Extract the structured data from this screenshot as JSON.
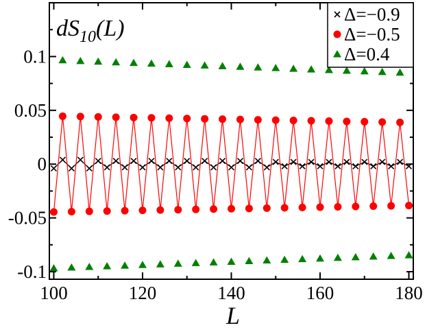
{
  "chart_data": {
    "type": "line",
    "annotation": {
      "prefix": "dS",
      "subscript": "10",
      "suffix": "(L)"
    },
    "xlabel": "L",
    "ylabel": "",
    "xlim": [
      99,
      181
    ],
    "ylim": [
      -0.107,
      0.15
    ],
    "x_ticks": [
      100,
      120,
      140,
      160,
      180
    ],
    "x_tick_labels": [
      "100",
      "120",
      "140",
      "160",
      "180"
    ],
    "y_ticks": [
      -0.1,
      -0.05,
      0,
      0.05,
      0.1
    ],
    "y_tick_labels": [
      "-0.1",
      "-0.05",
      "0",
      "0.05",
      "0.1"
    ],
    "legend_position": "top-right",
    "series": [
      {
        "name": "Δ=−0.9",
        "marker": "x",
        "color": "#000000",
        "line": true,
        "x": [
          100,
          102,
          104,
          106,
          108,
          110,
          112,
          114,
          116,
          118,
          120,
          122,
          124,
          126,
          128,
          130,
          132,
          134,
          136,
          138,
          140,
          142,
          144,
          146,
          148,
          150,
          152,
          154,
          156,
          158,
          160,
          162,
          164,
          166,
          168,
          170,
          172,
          174,
          176,
          178,
          180
        ],
        "y": [
          -0.004,
          0.004,
          -0.004,
          0.004,
          -0.004,
          0.003,
          -0.003,
          0.003,
          -0.003,
          0.003,
          -0.003,
          0.003,
          -0.003,
          0.003,
          -0.003,
          0.003,
          -0.003,
          0.003,
          -0.003,
          0.003,
          -0.003,
          0.003,
          -0.003,
          0.003,
          -0.003,
          0.002,
          -0.002,
          0.002,
          -0.002,
          0.002,
          -0.002,
          0.002,
          -0.002,
          0.002,
          -0.002,
          0.002,
          -0.002,
          0.002,
          -0.002,
          0.002,
          -0.002
        ]
      },
      {
        "name": "Δ=−0.5",
        "marker": "circle",
        "color": "#ff0000",
        "line": true,
        "x": [
          100,
          102,
          104,
          106,
          108,
          110,
          112,
          114,
          116,
          118,
          120,
          122,
          124,
          126,
          128,
          130,
          132,
          134,
          136,
          138,
          140,
          142,
          144,
          146,
          148,
          150,
          152,
          154,
          156,
          158,
          160,
          162,
          164,
          166,
          168,
          170,
          172,
          174,
          176,
          178,
          180
        ],
        "y": [
          -0.0445,
          0.0445,
          -0.0442,
          0.0442,
          -0.0439,
          0.0439,
          -0.0436,
          0.0436,
          -0.0433,
          0.0433,
          -0.043,
          0.043,
          -0.0427,
          0.0427,
          -0.0424,
          0.0424,
          -0.0421,
          0.0421,
          -0.0418,
          0.0418,
          -0.0415,
          0.0415,
          -0.0412,
          0.0412,
          -0.0409,
          0.0409,
          -0.0406,
          0.0406,
          -0.0403,
          0.0403,
          -0.04,
          0.04,
          -0.0397,
          0.0397,
          -0.0394,
          0.0394,
          -0.0391,
          0.0391,
          -0.0388,
          0.0388,
          -0.0385
        ]
      },
      {
        "name": "Δ=0.4",
        "marker": "triangle",
        "color": "#008000",
        "line": false,
        "x": [
          100,
          102,
          104,
          106,
          108,
          110,
          112,
          114,
          116,
          118,
          120,
          122,
          124,
          126,
          128,
          130,
          132,
          134,
          136,
          138,
          140,
          142,
          144,
          146,
          148,
          150,
          152,
          154,
          156,
          158,
          160,
          162,
          164,
          166,
          168,
          170,
          172,
          174,
          176,
          178,
          180
        ],
        "y": [
          -0.0968,
          0.0966,
          -0.0961,
          0.0959,
          -0.0955,
          0.0953,
          -0.0949,
          0.0947,
          -0.0943,
          0.0941,
          -0.0937,
          0.0935,
          -0.0931,
          0.0929,
          -0.0925,
          0.0923,
          -0.0919,
          0.0917,
          -0.0913,
          0.0911,
          -0.0907,
          0.0905,
          -0.0901,
          0.0899,
          -0.0895,
          0.0893,
          -0.0889,
          0.0887,
          -0.0883,
          0.0881,
          -0.0877,
          0.0875,
          -0.0871,
          0.0869,
          -0.0865,
          0.0863,
          -0.0859,
          0.0857,
          -0.0853,
          0.0851,
          -0.0847
        ]
      }
    ]
  }
}
